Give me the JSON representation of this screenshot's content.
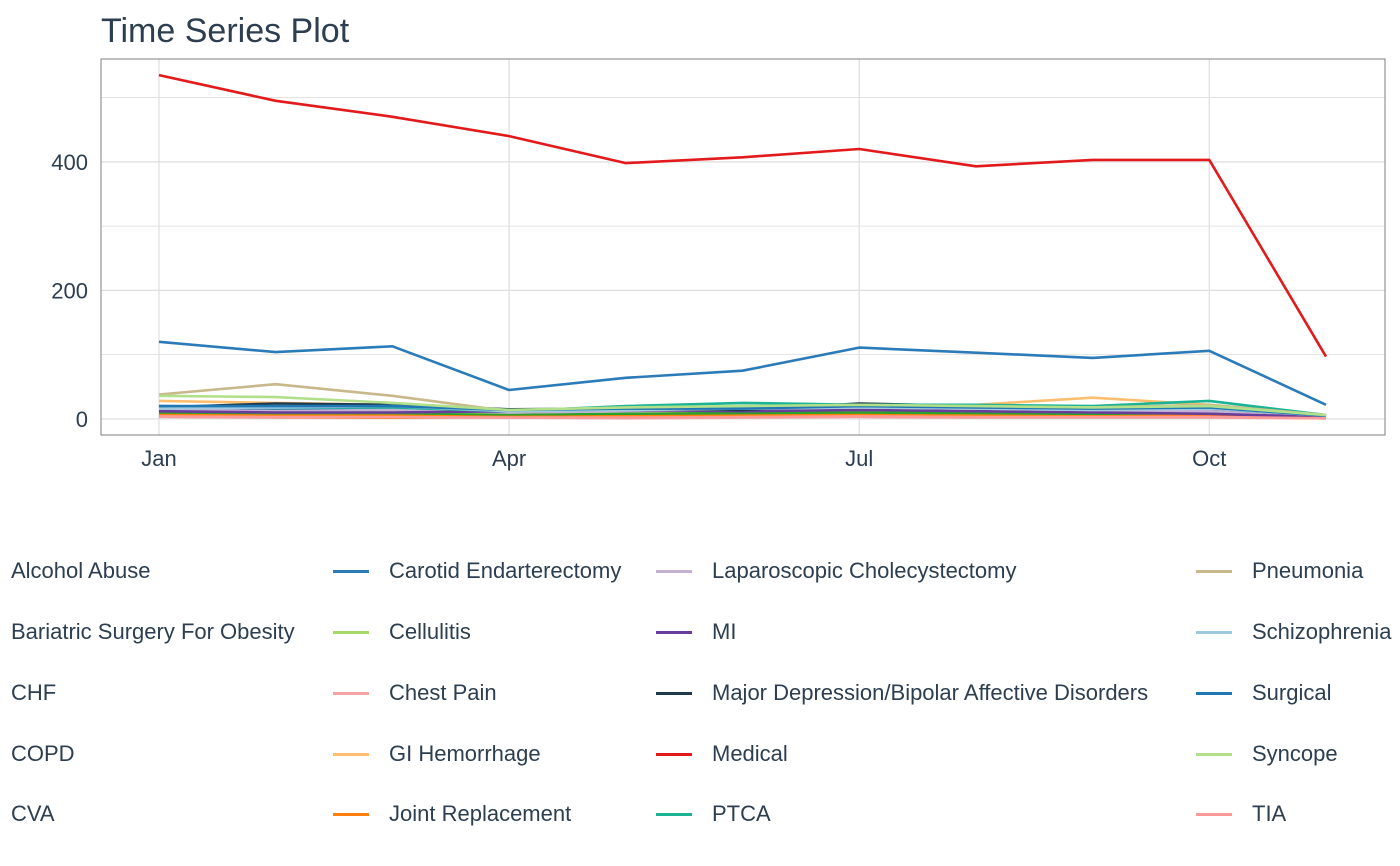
{
  "chart_data": {
    "type": "line",
    "title": "Time Series Plot",
    "xlabel": "",
    "ylabel": "",
    "x": [
      "Jan",
      "Feb",
      "Mar",
      "Apr",
      "May",
      "Jun",
      "Jul",
      "Aug",
      "Sep",
      "Oct",
      "Nov"
    ],
    "x_tick_labels": [
      "Jan",
      "Apr",
      "Jul",
      "Oct"
    ],
    "y_tick_labels": [
      "0",
      "200",
      "400"
    ],
    "ylim": [
      -25,
      560
    ],
    "grid": true,
    "legend_placement": "bottom",
    "series": [
      {
        "name": "Alcohol Abuse",
        "color": "#1f77b4",
        "values": [
          18,
          14,
          14,
          8,
          10,
          12,
          14,
          12,
          10,
          12,
          4
        ]
      },
      {
        "name": "Bariatric Surgery For Obesity",
        "color": "#aec7e8",
        "values": [
          5,
          4,
          4,
          3,
          3,
          4,
          5,
          4,
          4,
          4,
          1
        ]
      },
      {
        "name": "CHF",
        "color": "#ff7f0e",
        "values": [
          8,
          6,
          6,
          5,
          6,
          7,
          8,
          6,
          6,
          6,
          2
        ]
      },
      {
        "name": "COPD",
        "color": "#ffbb78",
        "values": [
          12,
          10,
          10,
          8,
          9,
          10,
          12,
          10,
          9,
          10,
          3
        ]
      },
      {
        "name": "CVA",
        "color": "#2ca02c",
        "values": [
          10,
          9,
          9,
          7,
          8,
          9,
          10,
          9,
          8,
          9,
          3
        ]
      },
      {
        "name": "Carotid Endarterectomy",
        "color": "#2b7bb9",
        "values": [
          120,
          104,
          113,
          45,
          64,
          75,
          111,
          103,
          95,
          106,
          22
        ]
      },
      {
        "name": "Cellulitis",
        "color": "#a6d96a",
        "values": [
          14,
          12,
          12,
          10,
          12,
          14,
          16,
          14,
          12,
          14,
          4
        ]
      },
      {
        "name": "Chest Pain",
        "color": "#f4a3a3",
        "values": [
          3,
          2,
          2,
          2,
          1,
          2,
          3,
          2,
          2,
          2,
          1
        ]
      },
      {
        "name": "GI Hemorrhage",
        "color": "#fdbf6f",
        "values": [
          28,
          25,
          22,
          14,
          16,
          18,
          20,
          22,
          33,
          22,
          6
        ]
      },
      {
        "name": "Joint Replacement",
        "color": "#ff7f0e",
        "values": [
          5,
          3,
          2,
          3,
          4,
          4,
          5,
          4,
          4,
          4,
          1
        ]
      },
      {
        "name": "Laparoscopic Cholecystectomy",
        "color": "#c5b0d5",
        "values": [
          15,
          12,
          14,
          10,
          12,
          14,
          15,
          13,
          12,
          12,
          4
        ]
      },
      {
        "name": "MI",
        "color": "#6a3d9a",
        "values": [
          12,
          10,
          10,
          12,
          14,
          12,
          14,
          12,
          10,
          8,
          3
        ]
      },
      {
        "name": "Major Depression/Bipolar Affective Disorders",
        "color": "#1f3a4d",
        "values": [
          18,
          24,
          22,
          15,
          16,
          14,
          24,
          20,
          16,
          16,
          5
        ]
      },
      {
        "name": "Medical",
        "color": "#e31a1c",
        "values": [
          535,
          495,
          470,
          440,
          398,
          407,
          420,
          393,
          403,
          403,
          97
        ]
      },
      {
        "name": "PTCA",
        "color": "#1ab394",
        "values": [
          20,
          18,
          18,
          12,
          20,
          25,
          22,
          22,
          20,
          28,
          6
        ]
      },
      {
        "name": "Pneumonia",
        "color": "#c8b88a",
        "values": [
          38,
          54,
          36,
          12,
          14,
          16,
          18,
          16,
          18,
          22,
          6
        ]
      },
      {
        "name": "Schizophrenia",
        "color": "#9ecae1",
        "values": [
          16,
          18,
          20,
          12,
          14,
          16,
          18,
          16,
          14,
          16,
          5
        ]
      },
      {
        "name": "Surgical",
        "color": "#1f78b4",
        "values": [
          20,
          20,
          20,
          14,
          16,
          16,
          20,
          18,
          16,
          18,
          5
        ]
      },
      {
        "name": "Syncope",
        "color": "#b2df8a",
        "values": [
          36,
          34,
          25,
          14,
          18,
          20,
          22,
          20,
          18,
          20,
          6
        ]
      },
      {
        "name": "TIA",
        "color": "#fb9a99",
        "values": [
          4,
          3,
          3,
          2,
          2,
          3,
          4,
          3,
          3,
          3,
          1
        ]
      }
    ]
  },
  "legend": {
    "columns": [
      {
        "items": [
          {
            "label": "Alcohol Abuse",
            "show_key": false,
            "color": "#ffffff"
          },
          {
            "label": "Bariatric Surgery For Obesity",
            "show_key": false,
            "color": "#ffffff"
          },
          {
            "label": "CHF",
            "show_key": false,
            "color": "#ffffff"
          },
          {
            "label": "COPD",
            "show_key": false,
            "color": "#ffffff"
          },
          {
            "label": "CVA",
            "show_key": false,
            "color": "#ffffff"
          }
        ]
      },
      {
        "items": [
          {
            "label": "Carotid Endarterectomy",
            "show_key": true,
            "color": "#2b7bb9"
          },
          {
            "label": "Cellulitis",
            "show_key": true,
            "color": "#a6d96a"
          },
          {
            "label": "Chest Pain",
            "show_key": true,
            "color": "#f4a3a3"
          },
          {
            "label": "GI Hemorrhage",
            "show_key": true,
            "color": "#fdbf6f"
          },
          {
            "label": "Joint Replacement",
            "show_key": true,
            "color": "#ff7f0e"
          }
        ]
      },
      {
        "items": [
          {
            "label": "Laparoscopic Cholecystectomy",
            "show_key": true,
            "color": "#c5b0d5"
          },
          {
            "label": "MI",
            "show_key": true,
            "color": "#6a3d9a"
          },
          {
            "label": "Major Depression/Bipolar Affective Disorders",
            "show_key": true,
            "color": "#1f3a4d"
          },
          {
            "label": "Medical",
            "show_key": true,
            "color": "#e31a1c"
          },
          {
            "label": "PTCA",
            "show_key": true,
            "color": "#1ab394"
          }
        ]
      },
      {
        "items": [
          {
            "label": "Pneumonia",
            "show_key": true,
            "color": "#c8b88a"
          },
          {
            "label": "Schizophrenia",
            "show_key": true,
            "color": "#9ecae1"
          },
          {
            "label": "Surgical",
            "show_key": true,
            "color": "#1f78b4"
          },
          {
            "label": "Syncope",
            "show_key": true,
            "color": "#b2df8a"
          },
          {
            "label": "TIA",
            "show_key": true,
            "color": "#fb9a99"
          }
        ]
      }
    ]
  }
}
